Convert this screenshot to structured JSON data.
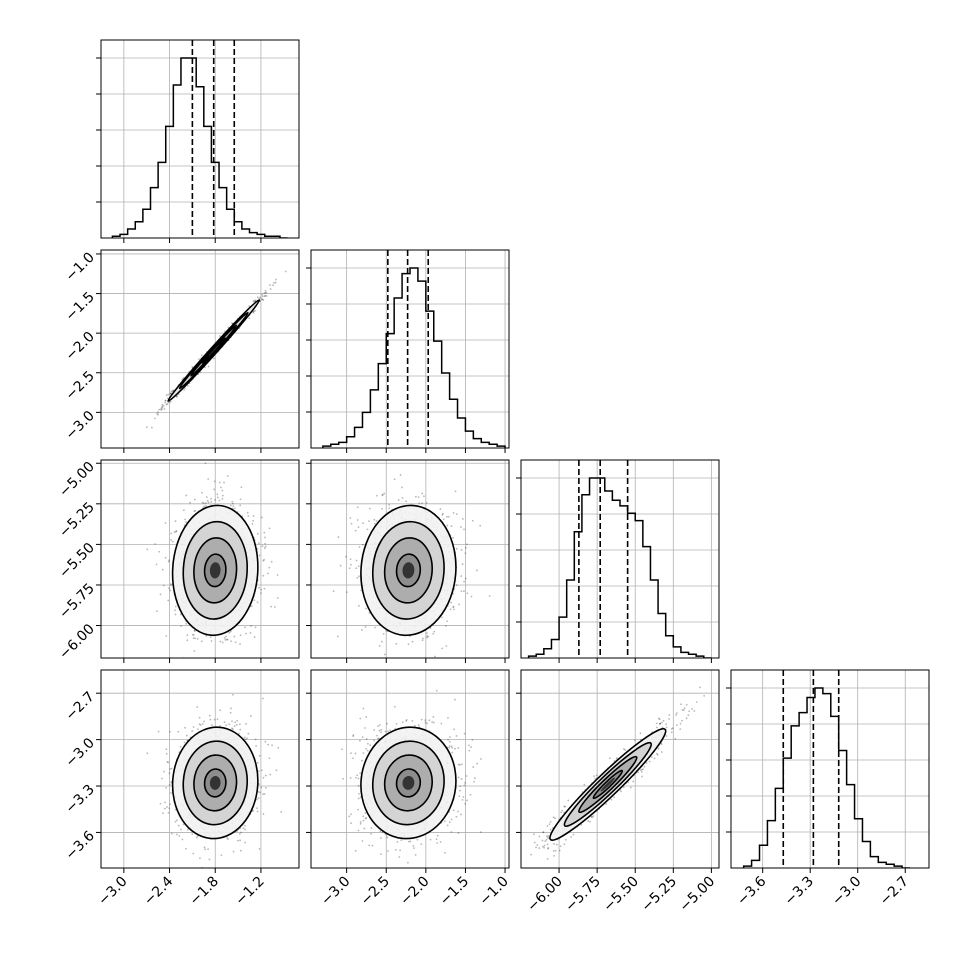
{
  "chart_data": {
    "type": "corner",
    "parameters": 4,
    "grid": true,
    "colors": {
      "line": "#000000",
      "grid": "#b0b0b0",
      "scatter": "#333333",
      "level_fills": [
        "#f2f2f2",
        "#d0d0d0",
        "#a8a8a8"
      ]
    },
    "axes": [
      {
        "xlim": [
          -3.3,
          -0.7
        ],
        "ylim": [
          -3.45,
          -0.95
        ],
        "xticks": [
          -3.0,
          -2.4,
          -1.8,
          -1.2
        ],
        "xtick_labels": [
          "−3.0",
          "−2.4",
          "−1.8",
          "−1.2"
        ]
      },
      {
        "xlim": [
          -3.45,
          -0.95
        ],
        "xticks": [
          -3.0,
          -2.5,
          -2.0,
          -1.5,
          -1.0
        ],
        "xtick_labels": [
          "−3.0",
          "−2.5",
          "−2.0",
          "−1.5",
          "−1.0"
        ],
        "ylim": [
          -3.45,
          -0.95
        ],
        "yticks": [
          -3.0,
          -2.5,
          -2.0,
          -1.5,
          -1.0
        ],
        "ytick_labels": [
          "−3.0",
          "−2.5",
          "−2.0",
          "−1.5",
          "−1.0"
        ]
      },
      {
        "xlim": [
          -6.25,
          -4.95
        ],
        "xticks": [
          -6.0,
          -5.75,
          -5.5,
          -5.25,
          -5.0
        ],
        "xtick_labels": [
          "−6.00",
          "−5.75",
          "−5.50",
          "−5.25",
          "−5.00"
        ],
        "ylim": [
          -6.2,
          -4.98
        ],
        "yticks": [
          -6.0,
          -5.75,
          -5.5,
          -5.25,
          -5.0
        ],
        "ytick_labels": [
          "−6.00",
          "−5.75",
          "−5.50",
          "−5.25",
          "−5.00"
        ]
      },
      {
        "xlim": [
          -3.8,
          -2.55
        ],
        "xticks": [
          -3.6,
          -3.3,
          -3.0,
          -2.7
        ],
        "xtick_labels": [
          "−3.6",
          "−3.3",
          "−3.0",
          "−2.7"
        ],
        "ylim": [
          -3.83,
          -2.55
        ],
        "yticks": [
          -3.6,
          -3.3,
          -3.0,
          -2.7
        ],
        "ytick_labels": [
          "−3.6",
          "−3.3",
          "−3.0",
          "−2.7"
        ]
      }
    ],
    "marginals": [
      {
        "edges": [
          -3.15,
          -3.05,
          -2.95,
          -2.85,
          -2.75,
          -2.65,
          -2.55,
          -2.45,
          -2.35,
          -2.25,
          -2.15,
          -2.05,
          -1.95,
          -1.85,
          -1.75,
          -1.65,
          -1.55,
          -1.45,
          -1.35,
          -1.25,
          -1.15,
          -1.05,
          -0.95,
          -0.85
        ],
        "counts": [
          1,
          2,
          5,
          9,
          16,
          28,
          42,
          62,
          85,
          100,
          100,
          84,
          62,
          42,
          28,
          16,
          9,
          5,
          3,
          2,
          1,
          1,
          0
        ],
        "quantiles": [
          -2.1,
          -1.82,
          -1.55
        ]
      },
      {
        "edges": [
          -3.3,
          -3.2,
          -3.1,
          -3.0,
          -2.9,
          -2.8,
          -2.7,
          -2.6,
          -2.5,
          -2.4,
          -2.3,
          -2.2,
          -2.1,
          -2.0,
          -1.9,
          -1.8,
          -1.7,
          -1.6,
          -1.5,
          -1.4,
          -1.3,
          -1.2,
          -1.1,
          -1.0
        ],
        "counts": [
          1,
          2,
          3,
          6,
          11,
          19,
          31,
          45,
          61,
          80,
          93,
          96,
          89,
          73,
          57,
          40,
          26,
          16,
          9,
          5,
          3,
          2,
          1
        ],
        "quantiles": [
          -2.48,
          -2.23,
          -1.97
        ]
      },
      {
        "edges": [
          -6.2,
          -6.15,
          -6.1,
          -6.05,
          -6.0,
          -5.95,
          -5.9,
          -5.85,
          -5.8,
          -5.75,
          -5.7,
          -5.65,
          -5.6,
          -5.55,
          -5.5,
          -5.45,
          -5.4,
          -5.35,
          -5.3,
          -5.25,
          -5.2,
          -5.15,
          -5.1,
          -5.05,
          -5.0
        ],
        "counts": [
          1,
          2,
          5,
          10,
          22,
          42,
          68,
          88,
          97,
          97,
          90,
          85,
          82,
          78,
          74,
          60,
          42,
          24,
          12,
          6,
          3,
          2,
          1,
          0
        ],
        "quantiles": [
          -5.87,
          -5.73,
          -5.55
        ]
      },
      {
        "edges": [
          -3.72,
          -3.67,
          -3.62,
          -3.57,
          -3.52,
          -3.47,
          -3.42,
          -3.37,
          -3.32,
          -3.27,
          -3.22,
          -3.17,
          -3.12,
          -3.07,
          -3.02,
          -2.97,
          -2.92,
          -2.87,
          -2.82,
          -2.77,
          -2.72,
          -2.67
        ],
        "counts": [
          1,
          4,
          12,
          25,
          42,
          58,
          75,
          82,
          90,
          95,
          92,
          80,
          62,
          44,
          26,
          14,
          6,
          3,
          2,
          1,
          0
        ],
        "quantiles": [
          -3.47,
          -3.28,
          -3.12
        ]
      }
    ],
    "joints": [
      {
        "row": 1,
        "col": 0,
        "mean": [
          -1.82,
          -2.22
        ],
        "std": [
          0.3,
          0.32
        ],
        "rho": 0.995
      },
      {
        "row": 2,
        "col": 0,
        "mean": [
          -1.8,
          -5.66
        ],
        "std": [
          0.28,
          0.2
        ],
        "rho": 0.05
      },
      {
        "row": 2,
        "col": 1,
        "mean": [
          -2.22,
          -5.66
        ],
        "std": [
          0.3,
          0.2
        ],
        "rho": 0.05
      },
      {
        "row": 3,
        "col": 0,
        "mean": [
          -1.8,
          -3.28
        ],
        "std": [
          0.28,
          0.18
        ],
        "rho": 0.04
      },
      {
        "row": 3,
        "col": 1,
        "mean": [
          -2.22,
          -3.28
        ],
        "std": [
          0.3,
          0.18
        ],
        "rho": 0.04
      },
      {
        "row": 3,
        "col": 2,
        "mean": [
          -5.68,
          -3.29
        ],
        "std": [
          0.19,
          0.18
        ],
        "rho": 0.96
      }
    ],
    "contour_levels": [
      0.5,
      1.0,
      1.5,
      2.0
    ]
  }
}
